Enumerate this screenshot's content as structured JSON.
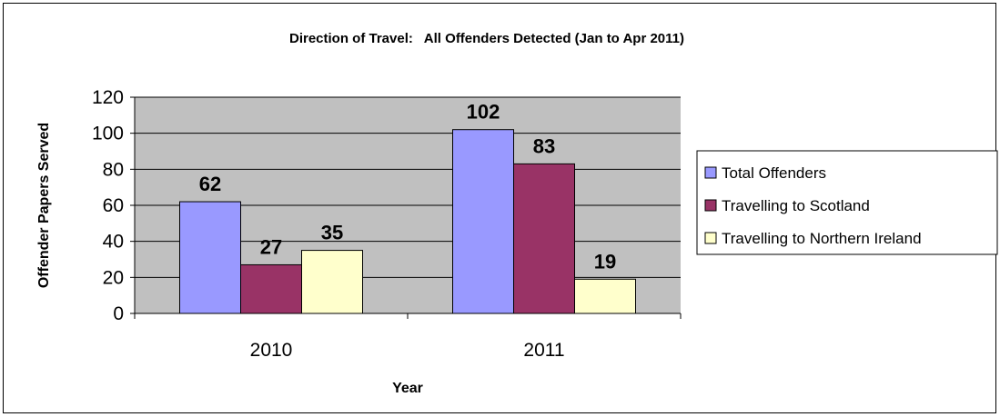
{
  "chart_data": {
    "type": "bar",
    "title": "Direction of Travel:   All Offenders Detected (Jan to Apr 2011)",
    "xlabel": "Year",
    "ylabel": "Offender Papers Served",
    "categories": [
      "2010",
      "2011"
    ],
    "series": [
      {
        "name": "Total Offenders",
        "values": [
          62,
          102
        ],
        "color": "#9999ff"
      },
      {
        "name": "Travelling to Scotland",
        "values": [
          27,
          83
        ],
        "color": "#993366"
      },
      {
        "name": "Travelling to Northern Ireland",
        "values": [
          35,
          19
        ],
        "color": "#ffffcc"
      }
    ],
    "ylim": [
      0,
      120
    ],
    "yticks": [
      "0",
      "20",
      "40",
      "60",
      "80",
      "100",
      "120"
    ],
    "grid": true,
    "plot_background": "#c0c0c0",
    "legend_position": "right"
  }
}
